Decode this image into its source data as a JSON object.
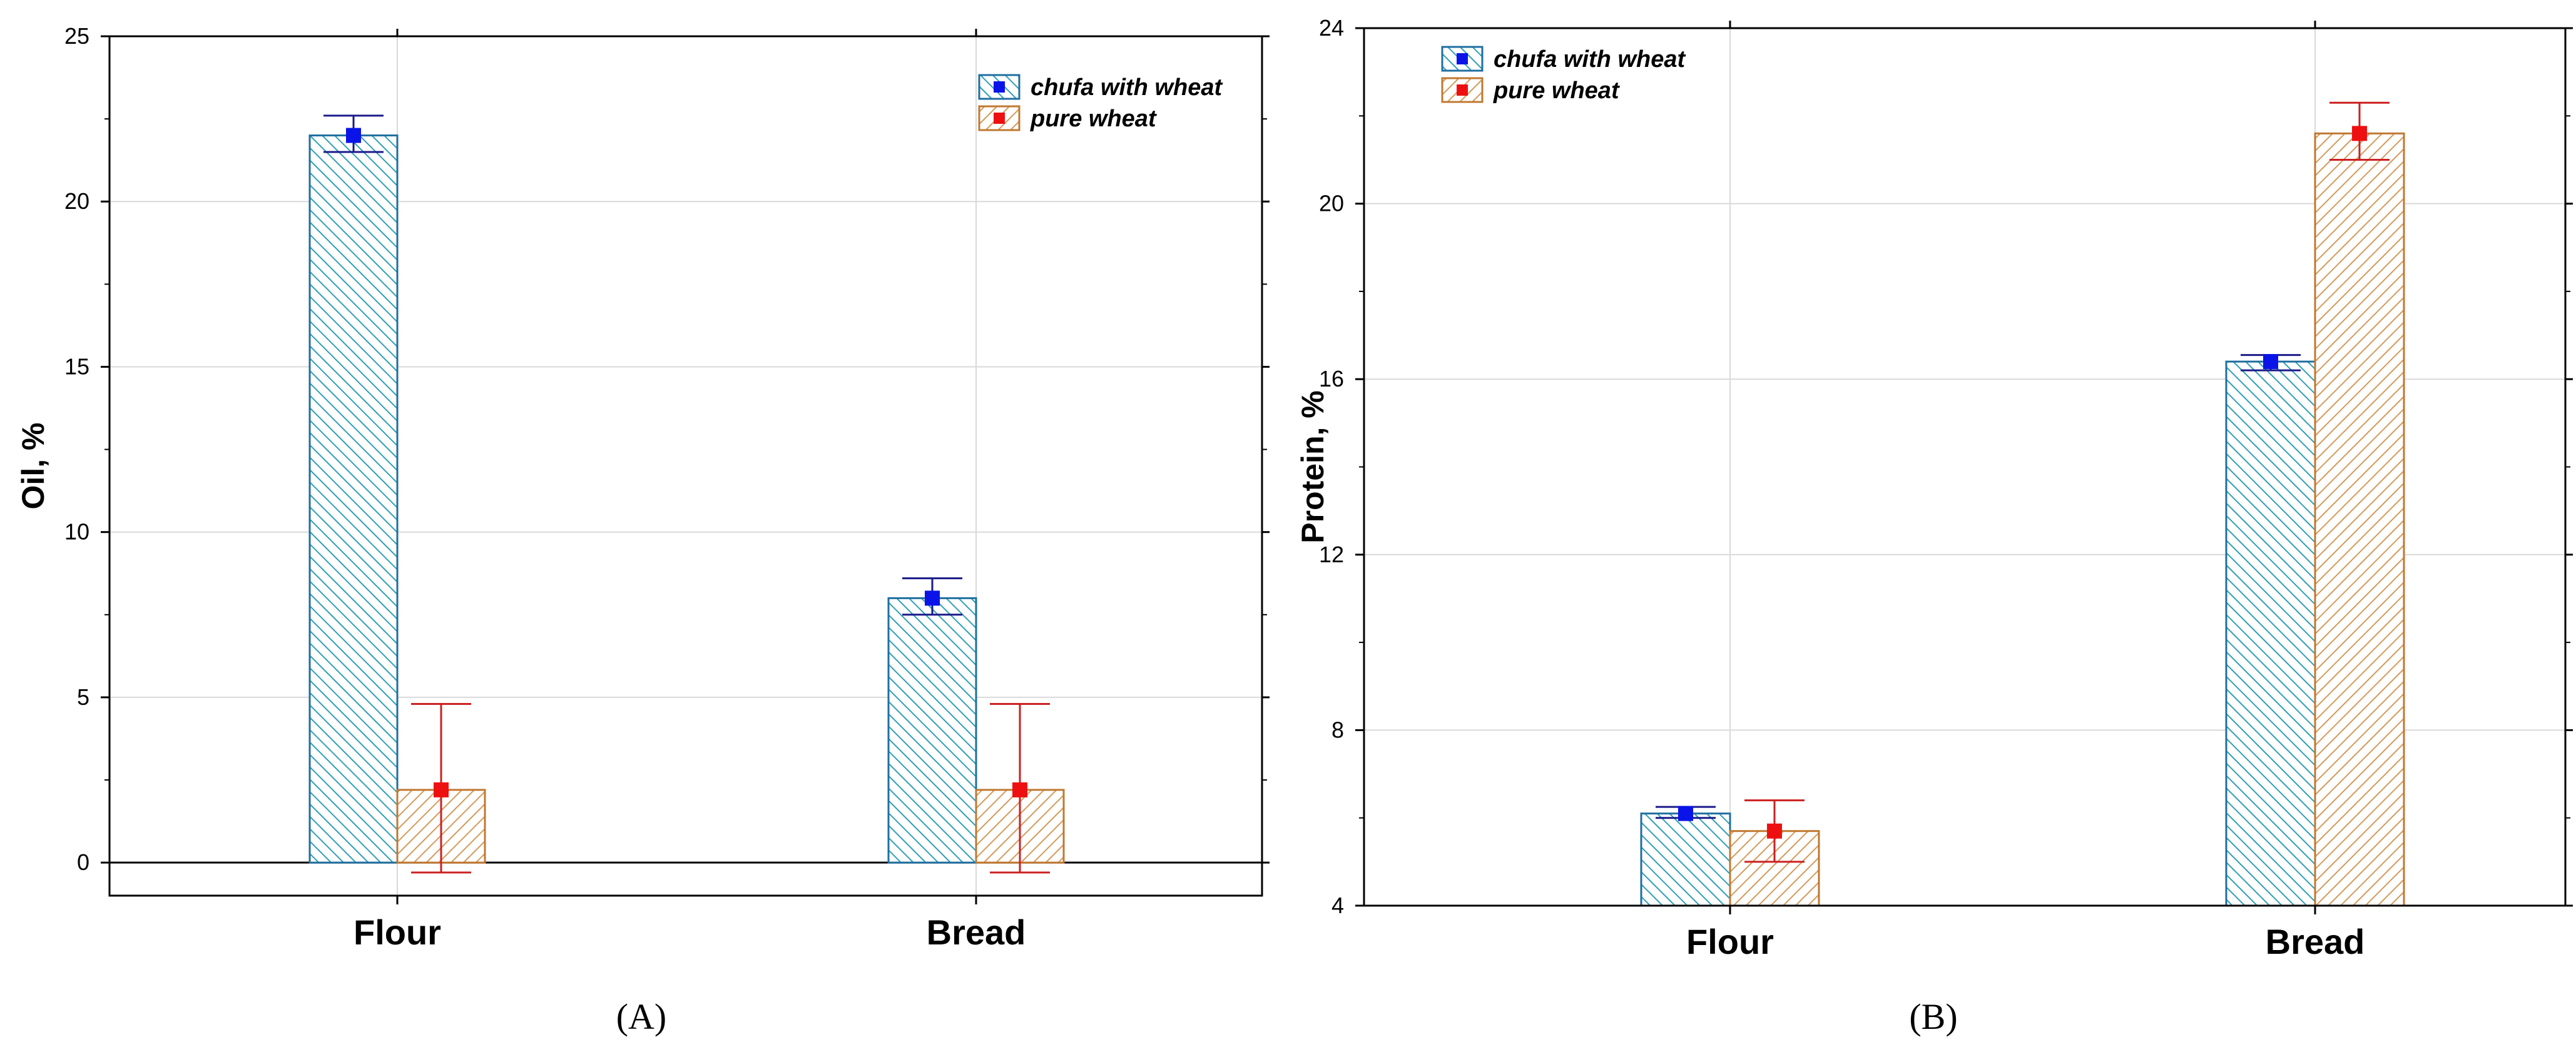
{
  "colors": {
    "series1_line": "#1f6fa0",
    "series1_hatch": "#2f9fb8",
    "series1_marker": "#0a14e8",
    "series2_line": "#c07830",
    "series2_hatch": "#d49a5a",
    "series2_marker": "#ee1010",
    "series2_error": "#cc2020",
    "grid": "#d9d9d9"
  },
  "chart_data": [
    {
      "type": "bar",
      "panel_label": "(A)",
      "ylabel": "Oil, %",
      "xlabel": "",
      "categories": [
        "Flour",
        "Bread"
      ],
      "ylim": [
        -1,
        25
      ],
      "yticks": [
        0,
        5,
        10,
        15,
        20,
        25
      ],
      "grid": true,
      "zero_line": true,
      "legend_position": "top-right",
      "series": [
        {
          "name": "chufa with wheat",
          "values": [
            22.0,
            8.0
          ],
          "error_low": [
            21.5,
            7.5
          ],
          "error_high": [
            22.6,
            8.6
          ]
        },
        {
          "name": "pure wheat",
          "values": [
            2.2,
            2.2
          ],
          "error_low": [
            -0.3,
            -0.3
          ],
          "error_high": [
            4.8,
            4.8
          ]
        }
      ]
    },
    {
      "type": "bar",
      "panel_label": "(B)",
      "ylabel": "Protein, %",
      "xlabel": "",
      "categories": [
        "Flour",
        "Bread"
      ],
      "ylim": [
        4,
        24
      ],
      "yticks": [
        4,
        8,
        12,
        16,
        20,
        24
      ],
      "grid": true,
      "zero_line": false,
      "legend_position": "top-left",
      "series": [
        {
          "name": "chufa with wheat",
          "values": [
            6.1,
            16.4
          ],
          "error_low": [
            6.0,
            16.2
          ],
          "error_high": [
            6.25,
            16.55
          ]
        },
        {
          "name": "pure wheat",
          "values": [
            5.7,
            21.6
          ],
          "error_low": [
            5.0,
            21.0
          ],
          "error_high": [
            6.4,
            22.3
          ]
        }
      ]
    }
  ]
}
